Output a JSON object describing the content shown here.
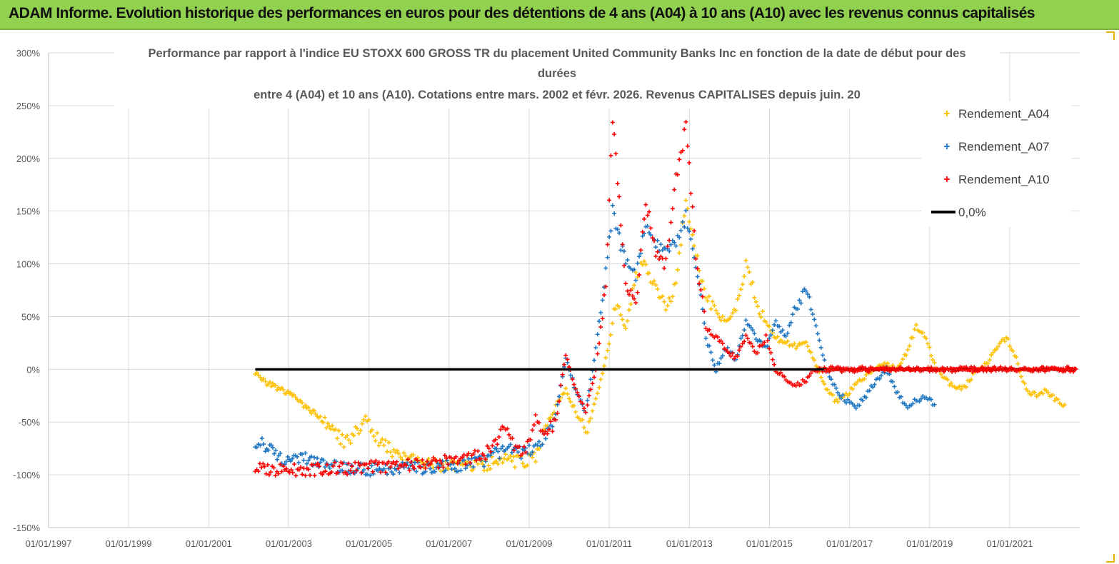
{
  "header": {
    "title": "ADAM Informe. Evolution historique des performances en euros pour des détentions de 4 ans (A04) à 10 ans (A10) avec les revenus connus capitalisés",
    "background": "#92d050"
  },
  "chart_data": {
    "type": "scatter",
    "title_lines": [
      "Performance par rapport à l'indice EU STOXX 600 GROSS TR  du placement United Community Banks Inc en fonction de la date de début pour des",
      "durées",
      "entre 4 (A04) et 10 ans (A10).  Cotations entre mars. 2002 et févr. 2026. Revenus CAPITALISES depuis juin. 20"
    ],
    "xlabel": "",
    "ylabel": "",
    "x_tick_labels": [
      "01/01/1997",
      "01/01/1999",
      "01/01/2001",
      "01/01/2003",
      "01/01/2005",
      "01/01/2007",
      "01/01/2009",
      "01/01/2011",
      "01/01/2013",
      "01/01/2015",
      "01/01/2017",
      "01/01/2019",
      "01/01/2021"
    ],
    "xlim": [
      "1997-01-01",
      "2022-10-01"
    ],
    "y_tick_labels": [
      "300%",
      "250%",
      "200%",
      "150%",
      "100%",
      "50%",
      "0%",
      "-50%",
      "-100%",
      "-150%"
    ],
    "ylim": [
      -150,
      300
    ],
    "grid": true,
    "legend_position": "top-right",
    "series": [
      {
        "name": "Rendement_A04",
        "color": "#ffc000",
        "marker": "+",
        "points": [
          [
            "2002-03-01",
            -3
          ],
          [
            "2002-06-01",
            -12
          ],
          [
            "2002-10-01",
            -18
          ],
          [
            "2003-02-01",
            -25
          ],
          [
            "2003-06-01",
            -35
          ],
          [
            "2003-10-01",
            -45
          ],
          [
            "2004-02-01",
            -58
          ],
          [
            "2004-06-01",
            -70
          ],
          [
            "2004-09-01",
            -60
          ],
          [
            "2004-12-01",
            -45
          ],
          [
            "2005-03-01",
            -65
          ],
          [
            "2005-06-01",
            -72
          ],
          [
            "2005-09-01",
            -80
          ],
          [
            "2005-12-01",
            -84
          ],
          [
            "2006-06-01",
            -88
          ],
          [
            "2006-12-01",
            -92
          ],
          [
            "2007-06-01",
            -92
          ],
          [
            "2007-12-01",
            -90
          ],
          [
            "2008-06-01",
            -86
          ],
          [
            "2008-12-01",
            -88
          ],
          [
            "2009-03-01",
            -82
          ],
          [
            "2009-06-01",
            -55
          ],
          [
            "2009-09-01",
            -35
          ],
          [
            "2009-12-01",
            -20
          ],
          [
            "2010-03-01",
            -40
          ],
          [
            "2010-06-01",
            -60
          ],
          [
            "2010-09-01",
            -30
          ],
          [
            "2010-12-01",
            10
          ],
          [
            "2011-03-01",
            60
          ],
          [
            "2011-06-01",
            40
          ],
          [
            "2011-09-01",
            90
          ],
          [
            "2011-12-01",
            100
          ],
          [
            "2012-03-01",
            75
          ],
          [
            "2012-06-01",
            60
          ],
          [
            "2012-09-01",
            80
          ],
          [
            "2012-12-01",
            160
          ],
          [
            "2013-03-01",
            110
          ],
          [
            "2013-06-01",
            65
          ],
          [
            "2013-09-01",
            60
          ],
          [
            "2013-12-01",
            45
          ],
          [
            "2014-03-01",
            55
          ],
          [
            "2014-06-01",
            100
          ],
          [
            "2014-09-01",
            65
          ],
          [
            "2014-12-01",
            45
          ],
          [
            "2015-03-01",
            30
          ],
          [
            "2015-06-01",
            25
          ],
          [
            "2015-09-01",
            22
          ],
          [
            "2015-12-01",
            25
          ],
          [
            "2016-03-01",
            5
          ],
          [
            "2016-06-01",
            -20
          ],
          [
            "2016-09-01",
            -30
          ],
          [
            "2016-12-01",
            -25
          ],
          [
            "2017-03-01",
            -15
          ],
          [
            "2017-06-01",
            -5
          ],
          [
            "2017-09-01",
            0
          ],
          [
            "2017-12-01",
            5
          ],
          [
            "2018-03-01",
            0
          ],
          [
            "2018-06-01",
            15
          ],
          [
            "2018-09-01",
            40
          ],
          [
            "2018-12-01",
            30
          ],
          [
            "2019-03-01",
            0
          ],
          [
            "2019-06-01",
            -10
          ],
          [
            "2019-09-01",
            -20
          ],
          [
            "2019-12-01",
            -15
          ],
          [
            "2020-03-01",
            0
          ],
          [
            "2020-06-01",
            5
          ],
          [
            "2020-09-01",
            20
          ],
          [
            "2020-12-01",
            30
          ],
          [
            "2021-03-01",
            10
          ],
          [
            "2021-06-01",
            -20
          ],
          [
            "2021-09-01",
            -25
          ],
          [
            "2021-12-01",
            -20
          ],
          [
            "2022-03-01",
            -30
          ],
          [
            "2022-06-01",
            -35
          ]
        ]
      },
      {
        "name": "Rendement_A07",
        "color": "#1f77c4",
        "marker": "+",
        "points": [
          [
            "2002-03-01",
            -68
          ],
          [
            "2002-06-01",
            -72
          ],
          [
            "2002-10-01",
            -85
          ],
          [
            "2003-02-01",
            -88
          ],
          [
            "2003-06-01",
            -84
          ],
          [
            "2003-10-01",
            -90
          ],
          [
            "2004-06-01",
            -94
          ],
          [
            "2004-12-01",
            -95
          ],
          [
            "2005-06-01",
            -95
          ],
          [
            "2005-12-01",
            -94
          ],
          [
            "2006-06-01",
            -93
          ],
          [
            "2006-12-01",
            -92
          ],
          [
            "2007-06-01",
            -90
          ],
          [
            "2007-12-01",
            -86
          ],
          [
            "2008-06-01",
            -75
          ],
          [
            "2008-12-01",
            -80
          ],
          [
            "2009-03-01",
            -72
          ],
          [
            "2009-06-01",
            -62
          ],
          [
            "2009-09-01",
            -45
          ],
          [
            "2009-12-01",
            10
          ],
          [
            "2010-03-01",
            -20
          ],
          [
            "2010-06-01",
            -40
          ],
          [
            "2010-09-01",
            20
          ],
          [
            "2010-12-01",
            90
          ],
          [
            "2011-02-01",
            150
          ],
          [
            "2011-06-01",
            100
          ],
          [
            "2011-09-01",
            90
          ],
          [
            "2011-12-01",
            140
          ],
          [
            "2012-03-01",
            120
          ],
          [
            "2012-06-01",
            110
          ],
          [
            "2012-09-01",
            120
          ],
          [
            "2012-12-01",
            145
          ],
          [
            "2013-03-01",
            100
          ],
          [
            "2013-06-01",
            30
          ],
          [
            "2013-09-01",
            0
          ],
          [
            "2013-12-01",
            20
          ],
          [
            "2014-03-01",
            10
          ],
          [
            "2014-06-01",
            45
          ],
          [
            "2014-09-01",
            30
          ],
          [
            "2014-12-01",
            20
          ],
          [
            "2015-03-01",
            45
          ],
          [
            "2015-06-01",
            30
          ],
          [
            "2015-09-01",
            60
          ],
          [
            "2015-12-01",
            75
          ],
          [
            "2016-03-01",
            40
          ],
          [
            "2016-06-01",
            0
          ],
          [
            "2016-09-01",
            -20
          ],
          [
            "2016-12-01",
            -30
          ],
          [
            "2017-03-01",
            -35
          ],
          [
            "2017-06-01",
            -25
          ],
          [
            "2017-09-01",
            -10
          ],
          [
            "2017-12-01",
            0
          ],
          [
            "2018-03-01",
            -20
          ],
          [
            "2018-06-01",
            -35
          ],
          [
            "2018-09-01",
            -30
          ],
          [
            "2018-12-01",
            -25
          ],
          [
            "2019-03-01",
            -35
          ]
        ]
      },
      {
        "name": "Rendement_A10",
        "color": "#ff0000",
        "marker": "+",
        "points": [
          [
            "2002-03-01",
            -94
          ],
          [
            "2002-09-01",
            -95
          ],
          [
            "2003-06-01",
            -95
          ],
          [
            "2004-06-01",
            -94
          ],
          [
            "2005-06-01",
            -92
          ],
          [
            "2006-06-01",
            -90
          ],
          [
            "2007-06-01",
            -84
          ],
          [
            "2007-12-01",
            -80
          ],
          [
            "2008-03-01",
            -70
          ],
          [
            "2008-06-01",
            -55
          ],
          [
            "2008-09-01",
            -75
          ],
          [
            "2008-12-01",
            -80
          ],
          [
            "2009-03-01",
            -45
          ],
          [
            "2009-06-01",
            -60
          ],
          [
            "2009-09-01",
            -50
          ],
          [
            "2009-12-01",
            15
          ],
          [
            "2010-03-01",
            -20
          ],
          [
            "2010-06-01",
            -40
          ],
          [
            "2010-09-01",
            0
          ],
          [
            "2010-12-01",
            80
          ],
          [
            "2011-02-01",
            240
          ],
          [
            "2011-06-01",
            80
          ],
          [
            "2011-09-01",
            60
          ],
          [
            "2011-12-01",
            160
          ],
          [
            "2012-03-01",
            110
          ],
          [
            "2012-06-01",
            100
          ],
          [
            "2012-09-01",
            180
          ],
          [
            "2012-12-01",
            230
          ],
          [
            "2013-03-01",
            110
          ],
          [
            "2013-06-01",
            40
          ],
          [
            "2013-09-01",
            30
          ],
          [
            "2013-12-01",
            20
          ],
          [
            "2014-03-01",
            10
          ],
          [
            "2014-06-01",
            30
          ],
          [
            "2014-09-01",
            15
          ],
          [
            "2014-12-01",
            30
          ],
          [
            "2015-03-01",
            0
          ],
          [
            "2015-06-01",
            -10
          ],
          [
            "2015-09-01",
            -15
          ],
          [
            "2015-12-01",
            -10
          ],
          [
            "2016-03-01",
            0
          ],
          [
            "2016-06-01",
            0
          ],
          [
            "2017-01-01",
            0
          ],
          [
            "2018-01-01",
            0
          ],
          [
            "2019-01-01",
            0
          ],
          [
            "2020-01-01",
            0
          ],
          [
            "2021-01-01",
            0
          ],
          [
            "2022-01-01",
            0
          ],
          [
            "2022-09-01",
            0
          ]
        ]
      },
      {
        "name": "0,0%",
        "color": "#000000",
        "marker": "line",
        "points": [
          [
            "2002-03-01",
            0
          ],
          [
            "2022-09-01",
            0
          ]
        ]
      }
    ]
  }
}
